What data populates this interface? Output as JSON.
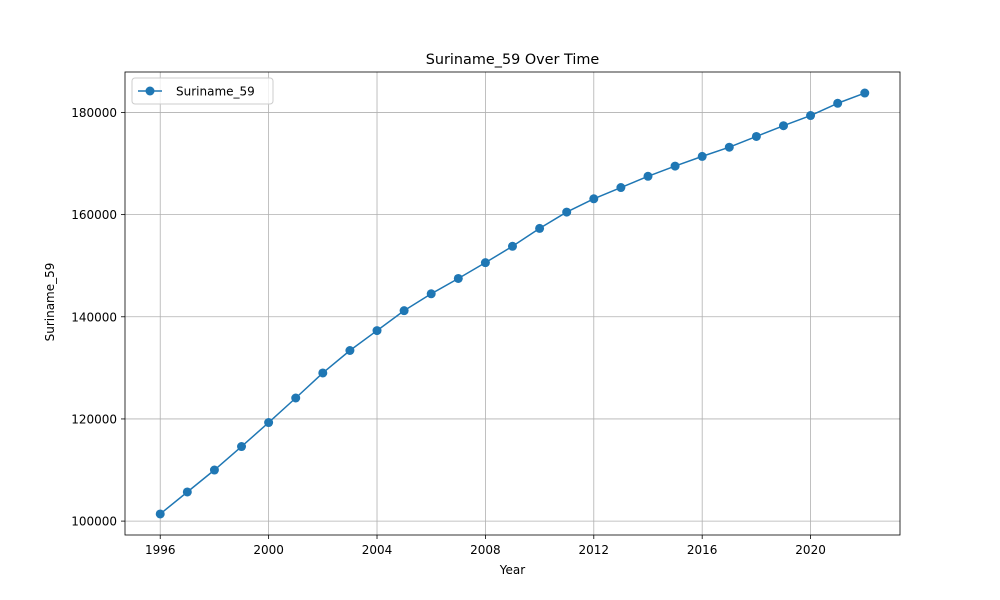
{
  "chart_data": {
    "type": "line",
    "title": "Suriname_59 Over Time",
    "xlabel": "Year",
    "ylabel": "Suriname_59",
    "x": [
      1996,
      1997,
      1998,
      1999,
      2000,
      2001,
      2002,
      2003,
      2004,
      2005,
      2006,
      2007,
      2008,
      2009,
      2010,
      2011,
      2012,
      2013,
      2014,
      2015,
      2016,
      2017,
      2018,
      2019,
      2020,
      2021,
      2022
    ],
    "series": [
      {
        "name": "Suriname_59",
        "color": "#1f77b4",
        "marker": "circle",
        "values": [
          101400,
          105700,
          110000,
          114600,
          119300,
          124100,
          129000,
          133400,
          137300,
          141200,
          144500,
          147500,
          150600,
          153800,
          157300,
          160500,
          163100,
          165300,
          167500,
          169500,
          171400,
          173200,
          175300,
          177400,
          179400,
          181800,
          183800
        ]
      }
    ],
    "xticks": [
      1996,
      2000,
      2004,
      2008,
      2012,
      2016,
      2020
    ],
    "xtick_labels": [
      "1996",
      "2000",
      "2004",
      "2008",
      "2012",
      "2016",
      "2020"
    ],
    "yticks": [
      100000,
      120000,
      140000,
      160000,
      180000
    ],
    "ytick_labels": [
      "100000",
      "120000",
      "140000",
      "160000",
      "180000"
    ],
    "xlim": [
      1994.7,
      2023.3
    ],
    "ylim": [
      97280,
      187920
    ],
    "grid": true,
    "legend_position": "top-left"
  }
}
